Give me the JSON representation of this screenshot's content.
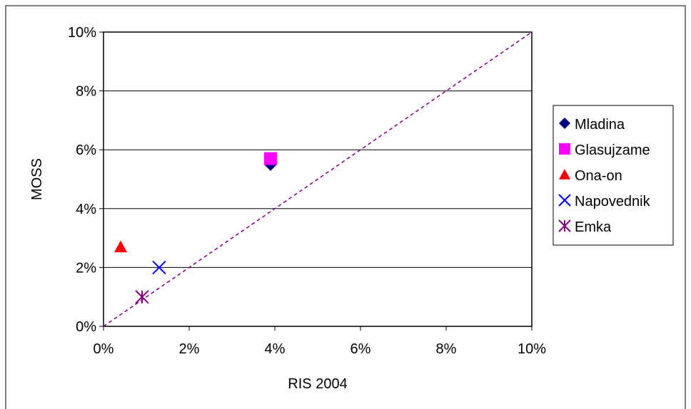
{
  "chart_data": {
    "type": "scatter",
    "title": "",
    "xlabel": "RIS 2004",
    "ylabel": "MOSS",
    "xlim": [
      0,
      10
    ],
    "ylim": [
      0,
      10
    ],
    "x_ticks": [
      "0%",
      "2%",
      "4%",
      "6%",
      "8%",
      "10%"
    ],
    "y_ticks": [
      "0%",
      "2%",
      "4%",
      "6%",
      "8%",
      "10%"
    ],
    "grid": "horizontal",
    "legend_position": "right",
    "reference_line": {
      "from": [
        0,
        0
      ],
      "to": [
        10,
        10
      ],
      "style": "dashed",
      "color": "#800080"
    },
    "series": [
      {
        "name": "Mladina",
        "marker": "diamond",
        "color": "#000080",
        "points": [
          [
            3.9,
            5.5
          ]
        ]
      },
      {
        "name": "Glasujzame",
        "marker": "square",
        "color": "#ff00ff",
        "points": [
          [
            3.9,
            5.7
          ]
        ]
      },
      {
        "name": "Ona-on",
        "marker": "triangle",
        "color": "#ff0000",
        "points": [
          [
            0.4,
            2.7
          ]
        ]
      },
      {
        "name": "Napovednik",
        "marker": "x",
        "color": "#0000ff",
        "points": [
          [
            1.3,
            2.0
          ]
        ]
      },
      {
        "name": "Emka",
        "marker": "star",
        "color": "#800080",
        "points": [
          [
            0.9,
            1.0
          ]
        ]
      }
    ]
  }
}
